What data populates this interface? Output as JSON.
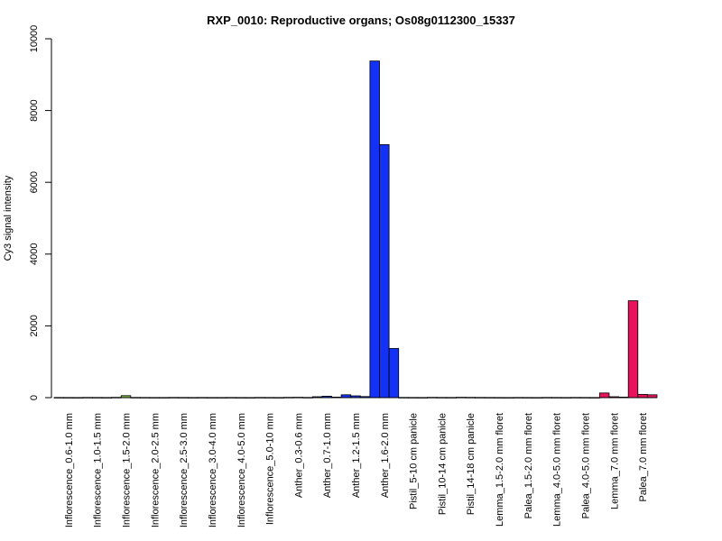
{
  "chart_data": {
    "type": "bar",
    "title": "RXP_0010: Reproductive organs; Os08g0112300_15337",
    "xlabel": "",
    "ylabel": "Cy3 signal intensity",
    "ylim": [
      0,
      10000
    ],
    "yticks": [
      0,
      2000,
      4000,
      6000,
      8000,
      10000
    ],
    "grid": false,
    "legend": "none",
    "groups": [
      {
        "label": "Inflorescence_0.6-1.0 mm",
        "color": "#7fbf3f",
        "values": [
          5,
          4,
          3
        ]
      },
      {
        "label": "Inflorescence_1.0-1.5 mm",
        "color": "#7fbf3f",
        "values": [
          6,
          5,
          4
        ]
      },
      {
        "label": "Inflorescence_1.5-2.0 mm",
        "color": "#7fbf3f",
        "values": [
          8,
          55,
          6
        ]
      },
      {
        "label": "Inflorescence_2.0-2.5 mm",
        "color": "#7fbf3f",
        "values": [
          5,
          4,
          4
        ]
      },
      {
        "label": "Inflorescence_2.5-3.0 mm",
        "color": "#7fbf3f",
        "values": [
          6,
          5,
          4
        ]
      },
      {
        "label": "Inflorescence_3.0-4.0 mm",
        "color": "#7fbf3f",
        "values": [
          5,
          4,
          4
        ]
      },
      {
        "label": "Inflorescence_4.0-5.0 mm",
        "color": "#7fbf3f",
        "values": [
          5,
          4,
          3
        ]
      },
      {
        "label": "Inflorescence_5.0-10 mm",
        "color": "#7fbf3f",
        "values": [
          6,
          5,
          4
        ]
      },
      {
        "label": "Anther_0.3-0.6 mm",
        "color": "#1432f5",
        "values": [
          8,
          10,
          6
        ]
      },
      {
        "label": "Anther_0.7-1.0 mm",
        "color": "#1432f5",
        "values": [
          25,
          40,
          15
        ]
      },
      {
        "label": "Anther_1.2-1.5 mm",
        "color": "#1432f5",
        "values": [
          80,
          50,
          30
        ]
      },
      {
        "label": "Anther_1.6-2.0 mm",
        "color": "#1432f5",
        "values": [
          9380,
          7050,
          1370
        ]
      },
      {
        "label": "Pistil_5-10 cm panicle",
        "color": "#7fbf3f",
        "values": [
          6,
          5,
          4
        ]
      },
      {
        "label": "Pistil_10-14 cm panicle",
        "color": "#7fbf3f",
        "values": [
          8,
          6,
          5
        ]
      },
      {
        "label": "Pistil_14-18 cm panicle",
        "color": "#7fbf3f",
        "values": [
          10,
          8,
          6
        ]
      },
      {
        "label": "Lemma_1.5-2.0 mm floret",
        "color": "#e8135c",
        "values": [
          5,
          4,
          3
        ]
      },
      {
        "label": "Palea_1.5-2.0 mm floret",
        "color": "#e8135c",
        "values": [
          5,
          4,
          3
        ]
      },
      {
        "label": "Lemma_4.0-5.0 mm floret",
        "color": "#e8135c",
        "values": [
          6,
          5,
          4
        ]
      },
      {
        "label": "Palea_4.0-5.0 mm floret",
        "color": "#e8135c",
        "values": [
          6,
          5,
          4
        ]
      },
      {
        "label": "Lemma_7.0 mm floret",
        "color": "#e8135c",
        "values": [
          130,
          25,
          15
        ]
      },
      {
        "label": "Palea_7.0 mm floret",
        "color": "#e8135c",
        "values": [
          2700,
          90,
          80
        ]
      }
    ]
  }
}
